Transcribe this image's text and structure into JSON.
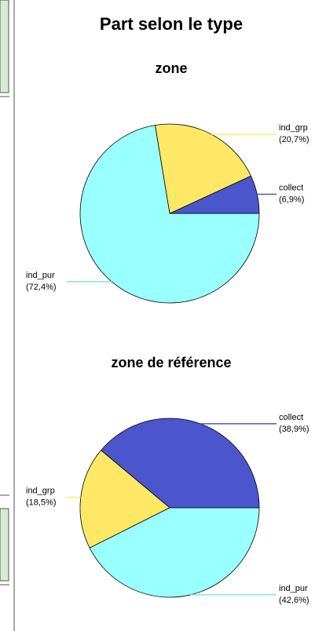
{
  "title": "Part selon le type",
  "chart_data": [
    {
      "type": "pie",
      "title": "zone",
      "categories": [
        "collect",
        "ind_grp",
        "ind_pur"
      ],
      "values": [
        6.9,
        20.7,
        72.4
      ],
      "value_labels": [
        "(6,9%)",
        "(20,7%)",
        "(72,4%)"
      ],
      "colors": [
        "#4b55cc",
        "#ffe866",
        "#99ffff"
      ]
    },
    {
      "type": "pie",
      "title": "zone de référence",
      "categories": [
        "collect",
        "ind_grp",
        "ind_pur"
      ],
      "values": [
        38.9,
        18.5,
        42.6
      ],
      "value_labels": [
        "(38,9%)",
        "(18,5%)",
        "(42,6%)"
      ],
      "colors": [
        "#4b55cc",
        "#ffe866",
        "#99ffff"
      ]
    }
  ]
}
